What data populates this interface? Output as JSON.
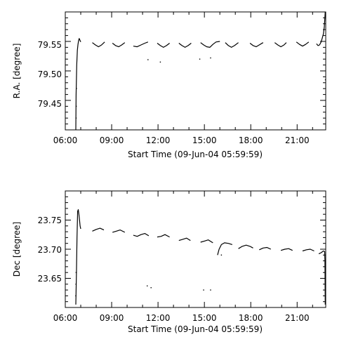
{
  "chart_data": [
    {
      "type": "scatter",
      "xlabel": "Start Time (09-Jun-04 05:59:59)",
      "ylabel": "R.A. [degree]",
      "xlim": [
        6.0,
        22.85
      ],
      "ylim": [
        79.4,
        79.6
      ],
      "x_ticks": [
        6,
        9,
        12,
        15,
        18,
        21
      ],
      "x_tick_labels": [
        "06:00",
        "09:00",
        "12:00",
        "15:00",
        "18:00",
        "21:00"
      ],
      "y_ticks": [
        79.45,
        79.5,
        79.55
      ],
      "y_tick_labels": [
        "79.45",
        "79.50",
        "79.55"
      ],
      "series": [
        {
          "segments": [
            {
              "x": [
                6.68,
                6.7,
                6.74,
                6.78,
                6.82,
                6.86,
                6.9,
                6.95,
                7.0
              ],
              "y": [
                79.4,
                79.46,
                79.51,
                79.535,
                79.545,
                79.551,
                79.555,
                79.552,
                79.549
              ]
            },
            {
              "x": [
                7.75,
                7.95,
                8.15,
                8.35,
                8.55
              ],
              "y": [
                79.548,
                79.544,
                79.541,
                79.544,
                79.549
              ]
            },
            {
              "x": [
                9.05,
                9.25,
                9.45,
                9.65,
                9.85
              ],
              "y": [
                79.547,
                79.543,
                79.541,
                79.544,
                79.548
              ]
            },
            {
              "x": [
                10.4,
                10.65,
                10.9,
                11.15,
                11.35
              ],
              "y": [
                79.542,
                79.541,
                79.544,
                79.547,
                79.549
              ]
            },
            {
              "x": [
                11.95,
                12.15,
                12.35,
                12.55,
                12.75
              ],
              "y": [
                79.547,
                79.543,
                79.54,
                79.543,
                79.547
              ]
            },
            {
              "x": [
                13.35,
                13.55,
                13.75,
                13.95,
                14.15
              ],
              "y": [
                79.547,
                79.543,
                79.54,
                79.543,
                79.547
              ]
            },
            {
              "x": [
                14.75,
                14.95,
                15.15,
                15.35,
                15.55,
                15.75,
                16.0
              ],
              "y": [
                79.548,
                79.544,
                79.541,
                79.54,
                79.545,
                79.549,
                79.55
              ]
            },
            {
              "x": [
                16.35,
                16.55,
                16.75,
                16.95,
                17.2
              ],
              "y": [
                79.548,
                79.543,
                79.54,
                79.543,
                79.548
              ]
            },
            {
              "x": [
                17.95,
                18.15,
                18.35,
                18.55,
                18.8
              ],
              "y": [
                79.547,
                79.543,
                79.541,
                79.544,
                79.548
              ]
            },
            {
              "x": [
                19.55,
                19.75,
                19.95,
                20.15,
                20.3
              ],
              "y": [
                79.548,
                79.544,
                79.541,
                79.544,
                79.548
              ]
            },
            {
              "x": [
                20.95,
                21.15,
                21.35,
                21.55,
                21.75
              ],
              "y": [
                79.549,
                79.545,
                79.542,
                79.545,
                79.549
              ]
            },
            {
              "x": [
                22.25,
                22.35,
                22.45,
                22.55,
                22.62,
                22.7,
                22.76,
                22.82
              ],
              "y": [
                79.546,
                79.543,
                79.544,
                79.549,
                79.555,
                79.563,
                79.575,
                79.6
              ]
            }
          ],
          "points": {
            "x": [
              6.7,
              6.71,
              6.72,
              11.35,
              12.15,
              14.7,
              15.4,
              22.83
            ],
            "y": [
              79.42,
              79.44,
              79.47,
              79.519,
              79.515,
              79.52,
              79.522,
              79.485
            ]
          }
        }
      ]
    },
    {
      "type": "scatter",
      "xlabel": "Start Time (09-Jun-04 05:59:59)",
      "ylabel": "Dec [degree]",
      "xlim": [
        6.0,
        22.85
      ],
      "ylim": [
        23.6,
        23.8
      ],
      "x_ticks": [
        6,
        9,
        12,
        15,
        18,
        21
      ],
      "x_tick_labels": [
        "06:00",
        "09:00",
        "12:00",
        "15:00",
        "18:00",
        "21:00"
      ],
      "y_ticks": [
        23.65,
        23.7,
        23.75
      ],
      "y_tick_labels": [
        "23.65",
        "23.70",
        "23.75"
      ],
      "series": [
        {
          "segments": [
            {
              "x": [
                6.68,
                6.72,
                6.76,
                6.8,
                6.84,
                6.88,
                6.92,
                6.96,
                7.0
              ],
              "y": [
                23.605,
                23.66,
                23.72,
                23.765,
                23.768,
                23.76,
                23.75,
                23.74,
                23.735
              ]
            },
            {
              "x": [
                7.75,
                8.0,
                8.25,
                8.5
              ],
              "y": [
                23.731,
                23.734,
                23.736,
                23.733
              ]
            },
            {
              "x": [
                9.05,
                9.3,
                9.55,
                9.85
              ],
              "y": [
                23.729,
                23.731,
                23.733,
                23.729
              ]
            },
            {
              "x": [
                10.4,
                10.65,
                10.9,
                11.15,
                11.4
              ],
              "y": [
                23.724,
                23.722,
                23.725,
                23.727,
                23.723
              ]
            },
            {
              "x": [
                11.95,
                12.2,
                12.45,
                12.75
              ],
              "y": [
                23.721,
                23.722,
                23.725,
                23.721
              ]
            },
            {
              "x": [
                13.35,
                13.6,
                13.85,
                14.1
              ],
              "y": [
                23.715,
                23.717,
                23.719,
                23.715
              ]
            },
            {
              "x": [
                14.75,
                15.0,
                15.25,
                15.55
              ],
              "y": [
                23.712,
                23.714,
                23.716,
                23.711
              ]
            },
            {
              "x": [
                15.85,
                15.95,
                16.1,
                16.3,
                16.55,
                16.8
              ],
              "y": [
                23.69,
                23.7,
                23.708,
                23.711,
                23.71,
                23.708
              ]
            },
            {
              "x": [
                17.2,
                17.45,
                17.7,
                17.95,
                18.15
              ],
              "y": [
                23.701,
                23.705,
                23.707,
                23.705,
                23.702
              ]
            },
            {
              "x": [
                18.55,
                18.8,
                19.05,
                19.3
              ],
              "y": [
                23.699,
                23.702,
                23.703,
                23.7
              ]
            },
            {
              "x": [
                19.95,
                20.2,
                20.45,
                20.7
              ],
              "y": [
                23.698,
                23.7,
                23.701,
                23.698
              ]
            },
            {
              "x": [
                21.35,
                21.6,
                21.85,
                22.1
              ],
              "y": [
                23.697,
                23.699,
                23.7,
                23.697
              ]
            },
            {
              "x": [
                22.4,
                22.55,
                22.7,
                22.78,
                22.8,
                22.81,
                22.82
              ],
              "y": [
                23.692,
                23.694,
                23.697,
                23.696,
                23.68,
                23.64,
                23.605
              ]
            }
          ],
          "points": {
            "x": [
              6.68,
              6.69,
              6.7,
              11.3,
              11.55,
              14.95,
              15.4,
              16.1
            ],
            "y": [
              23.62,
              23.64,
              23.66,
              23.637,
              23.634,
              23.63,
              23.63,
              23.69
            ]
          }
        }
      ]
    }
  ]
}
